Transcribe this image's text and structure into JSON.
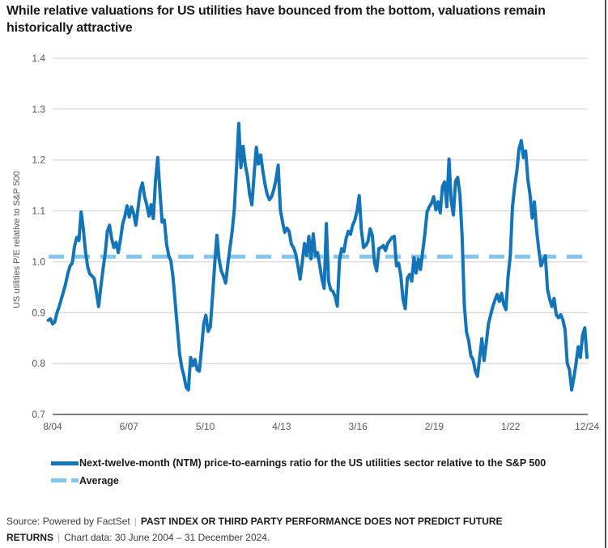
{
  "title": "While relative valuations for US utilities have bounced from the bottom, valuations remain historically attractive",
  "chart_data": {
    "type": "line",
    "title": "While relative valuations for US utilities have bounced from the bottom, valuations remain historically attractive",
    "xlabel": "",
    "ylabel": "US utilities P/E relative to S&P 500",
    "ylim": [
      0.7,
      1.4
    ],
    "yticks": [
      0.7,
      0.8,
      0.9,
      1.0,
      1.1,
      1.2,
      1.3,
      1.4
    ],
    "xtick_labels": [
      "8/04",
      "6/07",
      "5/10",
      "4/13",
      "3/16",
      "2/19",
      "1/22",
      "12/24"
    ],
    "x_unit": "month",
    "data_start": "June 2004",
    "data_end": "December 2024",
    "data_starts_months_before_first_tick": 2,
    "months_span_between_end_ticks": 244,
    "grid": "horizontal",
    "legend_position": "bottom",
    "series": [
      {
        "name": "Next-twelve-month (NTM) price-to-earnings ratio for the US utilities sector relative to the S&P 500",
        "color": "#1474B8",
        "style": "solid",
        "values": [
          0.885,
          0.888,
          0.878,
          0.882,
          0.9,
          0.912,
          0.927,
          0.942,
          0.958,
          0.978,
          0.992,
          0.998,
          1.03,
          1.048,
          1.042,
          1.098,
          1.065,
          1.02,
          0.99,
          0.976,
          0.972,
          0.967,
          0.94,
          0.912,
          0.95,
          0.985,
          1.016,
          1.06,
          1.072,
          1.045,
          1.028,
          1.038,
          1.018,
          1.045,
          1.075,
          1.09,
          1.11,
          1.088,
          1.108,
          1.095,
          1.072,
          1.105,
          1.14,
          1.155,
          1.128,
          1.112,
          1.09,
          1.112,
          1.085,
          1.16,
          1.205,
          1.14,
          1.078,
          1.082,
          1.035,
          1.012,
          1.002,
          0.968,
          0.918,
          0.868,
          0.818,
          0.792,
          0.775,
          0.753,
          0.748,
          0.812,
          0.796,
          0.808,
          0.788,
          0.785,
          0.828,
          0.878,
          0.895,
          0.863,
          0.872,
          0.932,
          0.995,
          1.052,
          1.005,
          0.982,
          0.972,
          0.958,
          0.995,
          1.028,
          1.06,
          1.105,
          1.185,
          1.272,
          1.185,
          1.227,
          1.19,
          1.168,
          1.132,
          1.112,
          1.172,
          1.225,
          1.192,
          1.21,
          1.178,
          1.152,
          1.132,
          1.122,
          1.128,
          1.142,
          1.162,
          1.19,
          1.102,
          1.078,
          1.058,
          1.066,
          1.06,
          1.035,
          1.028,
          1.016,
          0.992,
          0.966,
          1.0,
          1.036,
          1.012,
          1.05,
          1.006,
          1.055,
          1.012,
          1.018,
          0.992,
          0.966,
          0.948,
          1.075,
          0.962,
          0.945,
          0.942,
          0.932,
          0.913,
          1.002,
          1.026,
          1.02,
          1.046,
          1.06,
          1.054,
          1.072,
          1.082,
          1.1,
          1.13,
          1.062,
          1.028,
          1.032,
          1.04,
          1.065,
          1.052,
          0.998,
          0.982,
          1.026,
          1.028,
          1.032,
          1.022,
          1.036,
          1.042,
          1.048,
          1.05,
          0.992,
          0.997,
          0.972,
          0.926,
          0.908,
          0.968,
          0.975,
          0.962,
          1.008,
          0.978,
          1.005,
          0.985,
          1.02,
          1.055,
          1.098,
          1.108,
          1.115,
          1.128,
          1.102,
          1.118,
          1.096,
          1.148,
          1.157,
          1.108,
          1.202,
          1.12,
          1.092,
          1.158,
          1.166,
          1.132,
          1.05,
          0.915,
          0.862,
          0.845,
          0.815,
          0.808,
          0.786,
          0.775,
          0.812,
          0.849,
          0.806,
          0.84,
          0.878,
          0.895,
          0.912,
          0.925,
          0.936,
          0.922,
          0.938,
          0.916,
          0.906,
          0.972,
          1.012,
          1.108,
          1.148,
          1.178,
          1.222,
          1.238,
          1.205,
          1.218,
          1.162,
          1.132,
          1.086,
          1.118,
          1.062,
          1.024,
          0.992,
          1.002,
          1.012,
          0.946,
          0.926,
          0.912,
          0.928,
          0.896,
          0.89,
          0.896,
          0.886,
          0.866,
          0.8,
          0.788,
          0.748,
          0.772,
          0.8,
          0.833,
          0.812,
          0.856,
          0.87,
          0.812
        ]
      },
      {
        "name": "Average",
        "color": "#85C7EA",
        "style": "dashed",
        "value": 1.01
      }
    ]
  },
  "legend": {
    "series_label": "Next-twelve-month (NTM) price-to-earnings ratio for the US utilities sector relative to the S&P 500",
    "average_label": "Average"
  },
  "footer": {
    "source": "Source: Powered by FactSet",
    "separator": "|",
    "disclaimer": "PAST INDEX OR THIRD PARTY PERFORMANCE DOES NOT PREDICT FUTURE RETURNS",
    "range": "Chart data: 30 June 2004 – 31 December 2024."
  },
  "colors": {
    "line": "#1474B8",
    "average": "#85C7EA",
    "grid": "#cccccc",
    "axis": "#7f7f7f",
    "tick_text": "#595959",
    "title_text": "#1a1a1a",
    "border": "#4d4d4d"
  }
}
